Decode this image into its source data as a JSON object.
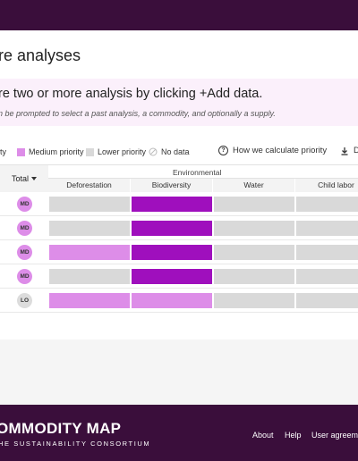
{
  "header": {},
  "page": {
    "title": "re analyses"
  },
  "banner": {
    "title": "re two or more analysis by clicking +Add data.",
    "subtitle": "n be prompted to select a past analysis, a commodity, and optionally a supply."
  },
  "legend": {
    "high_label": "ity",
    "medium_label": "Medium priority",
    "lower_label": "Lower priority",
    "nodata_label": "No data",
    "help_label": "How we calculate priority",
    "download_label": "D",
    "colors": {
      "high": "#9f0fbd",
      "medium": "#dd8de8",
      "low": "#d9d9d9"
    }
  },
  "table": {
    "total_header": "Total",
    "group_header": "Environmental",
    "columns": [
      "Deforestation",
      "Biodiversity",
      "Water",
      "Child labor"
    ],
    "rows": [
      {
        "badge": "MD",
        "cells": [
          "low",
          "high",
          "low",
          "low"
        ]
      },
      {
        "badge": "MD",
        "cells": [
          "low",
          "high",
          "low",
          "low"
        ]
      },
      {
        "badge": "MD",
        "cells": [
          "medium",
          "high",
          "low",
          "low"
        ]
      },
      {
        "badge": "MD",
        "cells": [
          "low",
          "high",
          "low",
          "low"
        ]
      },
      {
        "badge": "LO",
        "cells": [
          "medium",
          "medium",
          "low",
          "low"
        ]
      }
    ]
  },
  "footer": {
    "logo_main": "OMMODITY MAP",
    "logo_sub": "HE SUSTAINABILITY CONSORTIUM",
    "links": [
      "About",
      "Help",
      "User agreem"
    ]
  }
}
